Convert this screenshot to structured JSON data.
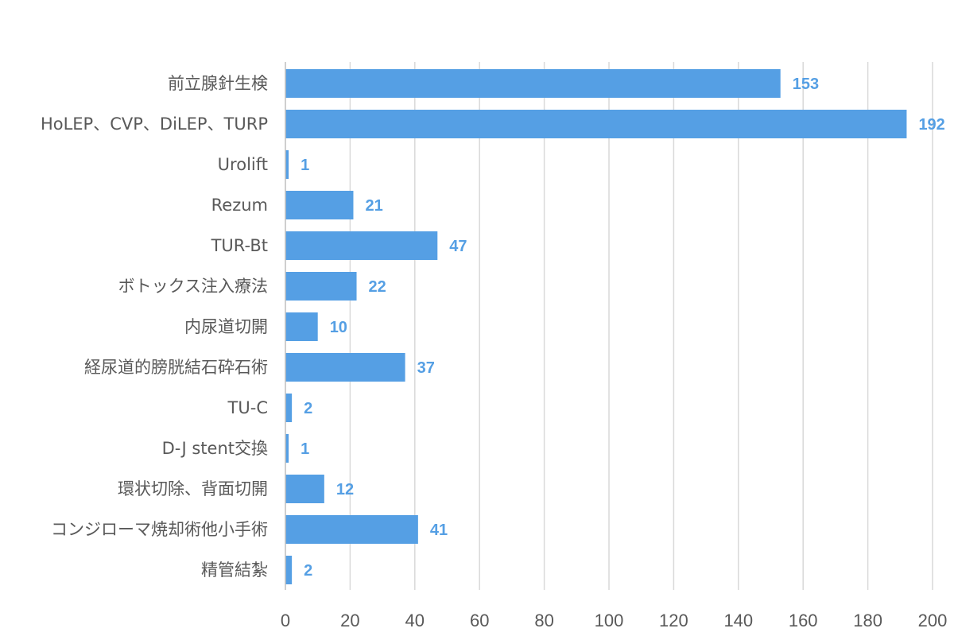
{
  "chart_data": {
    "type": "bar",
    "orientation": "horizontal",
    "categories": [
      "前立腺針生検",
      "HoLEP、CVP、DiLEP、TURP",
      "Urolift",
      "Rezum",
      "TUR-Bt",
      "ボトックス注入療法",
      "内尿道切開",
      "経尿道的膀胱結石砕石術",
      "TU-C",
      "D-J stent交換",
      "環状切除、背面切開",
      "コンジローマ焼却術他小手術",
      "精管結紮"
    ],
    "values": [
      153,
      192,
      1,
      21,
      47,
      22,
      10,
      37,
      2,
      1,
      12,
      41,
      2
    ],
    "data_labels": [
      "153",
      "192",
      "1",
      "21",
      "47",
      "22",
      "10",
      "37",
      "2",
      "1",
      "12",
      "41",
      "2"
    ],
    "x_ticks": [
      "0",
      "20",
      "40",
      "60",
      "80",
      "100",
      "120",
      "140",
      "160",
      "180",
      "200"
    ],
    "xlim": [
      0,
      200
    ],
    "title": "",
    "xlabel": "",
    "ylabel": "",
    "grid": "vertical",
    "legend": "none",
    "colors": {
      "bar": "#559fe4",
      "label": "#559fe4",
      "grid": "#d9d9d9",
      "axis": "#bfbfbf"
    }
  }
}
